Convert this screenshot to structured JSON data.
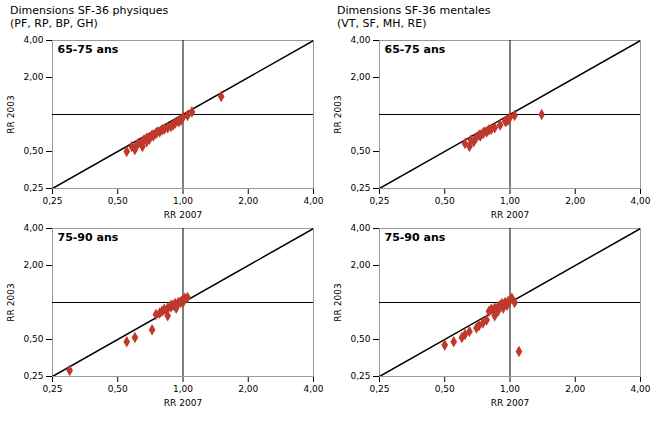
{
  "chart_data": [
    {
      "type": "scatter",
      "title": "Dimensions SF-36 physiques\n(PF, RP, BP, GH)",
      "subtitle": "65-75 ans",
      "x_label": "RR 2007",
      "y_label": "RR 2003",
      "log": true,
      "color": "#c0392b",
      "marker": "diamond",
      "xlim": [
        0.25,
        4.0
      ],
      "ylim": [
        0.25,
        4.0
      ],
      "xticks": [
        {
          "value": 0.25,
          "label": "0,25"
        },
        {
          "value": 0.5,
          "label": "0,50"
        },
        {
          "value": 1.0,
          "label": "1,00"
        },
        {
          "value": 2.0,
          "label": "2,00"
        },
        {
          "value": 4.0,
          "label": "4,00"
        }
      ],
      "yticks": [
        {
          "value": 0.25,
          "label": "0,25"
        },
        {
          "value": 0.5,
          "label": "0,50"
        },
        {
          "value": 2.0,
          "label": "2,00"
        },
        {
          "value": 4.0,
          "label": "4,00"
        }
      ],
      "x": [
        0.7,
        0.72,
        0.75,
        0.68,
        0.65,
        0.6,
        0.62,
        0.8,
        0.78,
        0.85,
        0.9,
        0.95,
        1.0,
        1.05,
        0.55,
        0.58,
        0.66,
        0.73,
        0.88,
        0.92,
        0.76,
        0.64,
        0.7,
        0.82,
        0.68,
        1.1,
        1.5,
        0.98,
        0.96,
        0.6
      ],
      "y": [
        0.65,
        0.68,
        0.7,
        0.6,
        0.55,
        0.52,
        0.58,
        0.75,
        0.72,
        0.78,
        0.82,
        0.88,
        0.95,
        0.98,
        0.5,
        0.55,
        0.62,
        0.67,
        0.8,
        0.85,
        0.72,
        0.58,
        0.63,
        0.76,
        0.64,
        1.05,
        1.4,
        0.9,
        0.88,
        0.53
      ]
    },
    {
      "type": "scatter",
      "title": "Dimensions SF-36 mentales\n(VT, SF, MH, RE)",
      "subtitle": "65-75 ans",
      "x_label": "RR 2007",
      "y_label": "RR 2003",
      "log": true,
      "color": "#c0392b",
      "marker": "diamond",
      "xlim": [
        0.25,
        4.0
      ],
      "ylim": [
        0.25,
        4.0
      ],
      "xticks": [
        {
          "value": 0.25,
          "label": "0,25"
        },
        {
          "value": 0.5,
          "label": "0,50"
        },
        {
          "value": 1.0,
          "label": "1,00"
        },
        {
          "value": 2.0,
          "label": "2,00"
        },
        {
          "value": 4.0,
          "label": "4,00"
        }
      ],
      "yticks": [
        {
          "value": 0.25,
          "label": "0,25"
        },
        {
          "value": 0.5,
          "label": "0,50"
        },
        {
          "value": 2.0,
          "label": "2,00"
        },
        {
          "value": 4.0,
          "label": "4,00"
        }
      ],
      "x": [
        0.7,
        0.72,
        0.75,
        0.68,
        0.65,
        0.62,
        0.8,
        0.78,
        0.85,
        0.9,
        0.95,
        1.0,
        1.05,
        0.66,
        0.73,
        0.76,
        0.82,
        1.4,
        0.98,
        0.96
      ],
      "y": [
        0.65,
        0.68,
        0.7,
        0.6,
        0.55,
        0.58,
        0.75,
        0.72,
        0.78,
        0.82,
        0.88,
        0.95,
        0.98,
        0.62,
        0.67,
        0.72,
        0.76,
        1.0,
        0.9,
        0.88
      ]
    },
    {
      "type": "scatter",
      "subtitle": "75-90 ans",
      "x_label": "RR 2007",
      "y_label": "RR 2003",
      "log": true,
      "color": "#c0392b",
      "marker": "diamond",
      "xlim": [
        0.25,
        4.0
      ],
      "ylim": [
        0.25,
        4.0
      ],
      "xticks": [
        {
          "value": 0.25,
          "label": "0,25"
        },
        {
          "value": 0.5,
          "label": "0,50"
        },
        {
          "value": 1.0,
          "label": "1,00"
        },
        {
          "value": 2.0,
          "label": "2,00"
        },
        {
          "value": 4.0,
          "label": "4,00"
        }
      ],
      "yticks": [
        {
          "value": 0.25,
          "label": "0,25"
        },
        {
          "value": 0.5,
          "label": "0,50"
        },
        {
          "value": 2.0,
          "label": "2,00"
        },
        {
          "value": 4.0,
          "label": "4,00"
        }
      ],
      "x": [
        0.75,
        0.78,
        0.8,
        0.82,
        0.85,
        0.88,
        0.9,
        0.92,
        0.95,
        0.98,
        1.0,
        1.02,
        0.85,
        0.3,
        0.55,
        0.6,
        0.72,
        1.05,
        0.88,
        0.93,
        0.97,
        1.0
      ],
      "y": [
        0.8,
        0.82,
        0.85,
        0.88,
        0.9,
        0.92,
        0.95,
        0.98,
        1.0,
        1.02,
        1.05,
        1.08,
        0.78,
        0.28,
        0.48,
        0.52,
        0.6,
        1.1,
        0.95,
        0.9,
        1.0,
        1.0
      ]
    },
    {
      "type": "scatter",
      "subtitle": "75-90 ans",
      "x_label": "RR 2007",
      "y_label": "RR 2003",
      "log": true,
      "color": "#c0392b",
      "marker": "diamond",
      "xlim": [
        0.25,
        4.0
      ],
      "ylim": [
        0.25,
        4.0
      ],
      "xticks": [
        {
          "value": 0.25,
          "label": "0,25"
        },
        {
          "value": 0.5,
          "label": "0,50"
        },
        {
          "value": 1.0,
          "label": "1,00"
        },
        {
          "value": 2.0,
          "label": "2,00"
        },
        {
          "value": 4.0,
          "label": "4,00"
        }
      ],
      "yticks": [
        {
          "value": 0.25,
          "label": "0,25"
        },
        {
          "value": 0.5,
          "label": "0,50"
        },
        {
          "value": 2.0,
          "label": "2,00"
        },
        {
          "value": 4.0,
          "label": "4,00"
        }
      ],
      "x": [
        0.8,
        0.82,
        0.85,
        0.88,
        0.9,
        0.92,
        0.95,
        0.98,
        1.0,
        1.02,
        0.85,
        0.55,
        0.62,
        0.72,
        0.88,
        1.05,
        0.93,
        0.97,
        0.6,
        0.65,
        0.5,
        0.7,
        0.75,
        0.78,
        1.1
      ],
      "y": [
        0.85,
        0.88,
        0.9,
        0.92,
        0.95,
        0.98,
        1.0,
        1.02,
        1.05,
        1.08,
        0.78,
        0.48,
        0.55,
        0.65,
        0.85,
        1.0,
        0.9,
        0.95,
        0.52,
        0.58,
        0.45,
        0.62,
        0.68,
        0.72,
        0.4
      ]
    }
  ]
}
